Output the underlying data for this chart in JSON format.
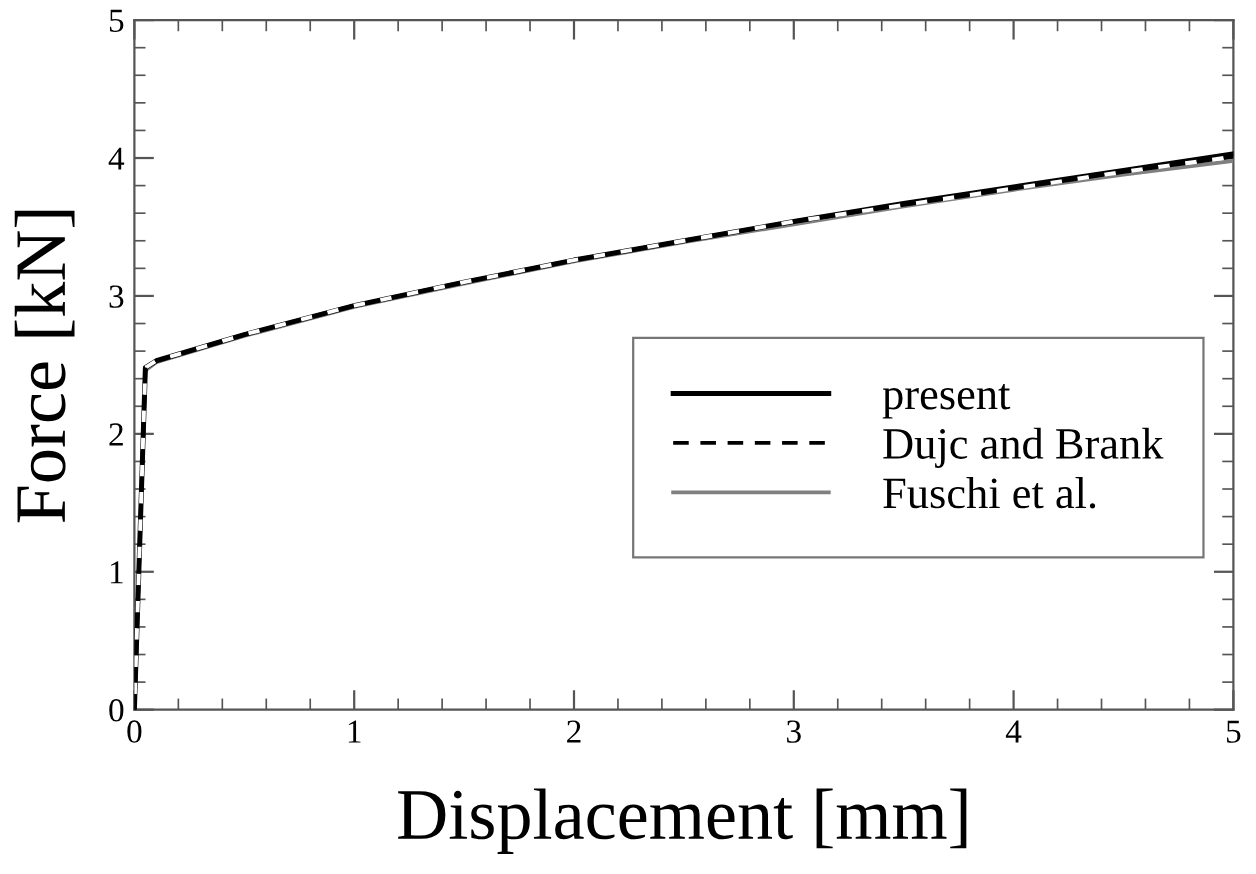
{
  "chart_data": {
    "type": "line",
    "xlabel": "Displacement [mm]",
    "ylabel": "Force [kN]",
    "x": [
      0,
      0.05,
      0.1,
      0.5,
      1,
      1.5,
      2,
      2.5,
      3,
      3.5,
      4,
      4.5,
      5
    ],
    "series": [
      {
        "name": "present",
        "color": "#000000",
        "line_style": "solid",
        "values": [
          0,
          2.48,
          2.53,
          2.72,
          2.93,
          3.1,
          3.26,
          3.4,
          3.54,
          3.67,
          3.79,
          3.91,
          4.03
        ]
      },
      {
        "name": "Dujc and Brank",
        "color": "#000000",
        "line_style": "dashed",
        "values": [
          0,
          2.48,
          2.53,
          2.72,
          2.93,
          3.1,
          3.26,
          3.4,
          3.54,
          3.66,
          3.78,
          3.9,
          4.01
        ]
      },
      {
        "name": "Fuschi et al.",
        "color": "#808080",
        "line_style": "solid",
        "values": [
          0,
          2.46,
          2.52,
          2.71,
          2.92,
          3.09,
          3.25,
          3.39,
          3.52,
          3.65,
          3.77,
          3.88,
          3.98
        ]
      }
    ],
    "xlim": [
      0,
      5
    ],
    "ylim": [
      0,
      5
    ],
    "xticks": [
      0,
      1,
      2,
      3,
      4,
      5
    ],
    "yticks": [
      0,
      1,
      2,
      3,
      4,
      5
    ],
    "grid": false,
    "legend": "right",
    "marker": "none"
  }
}
